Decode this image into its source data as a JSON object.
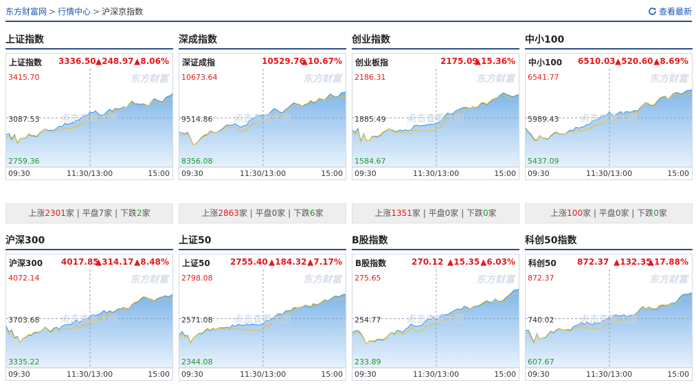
{
  "breadcrumb": {
    "home": "东方财富网",
    "section": "行情中心",
    "current": "沪深京指数",
    "separator": ">"
  },
  "refresh_label": "查看最新",
  "watermark": "点击查看大图",
  "logo_text": "东方财富",
  "x_ticks": [
    "09:30",
    "11:30/13:00",
    "15:00"
  ],
  "stats_labels": {
    "up": "上涨",
    "flat": "平盘",
    "down": "下跌",
    "unit": "家",
    "sep": "|"
  },
  "colors": {
    "up": "#e4191c",
    "down": "#179a26",
    "area_top": "#7fb6ea",
    "area_bottom": "#e8f2fc",
    "line": "#3f8fe0",
    "avg_line": "#f0c020",
    "border": "#2b4a8b"
  },
  "indices": [
    {
      "title": "上证指数",
      "name": "上证指数",
      "price": "3336.50",
      "change": "▲248.97",
      "pct": "▲8.06%",
      "high": "3415.70",
      "mid": "3087.53",
      "low": "2759.36",
      "stats": {
        "up": "2301",
        "flat": "7",
        "down": "2"
      }
    },
    {
      "title": "深成指数",
      "name": "深证成指",
      "price": "10529.76",
      "change": "",
      "pct": "▲10.67%",
      "high": "10673.64",
      "mid": "9514.86",
      "low": "8356.08",
      "stats": {
        "up": "2863",
        "flat": "0",
        "down": "6"
      }
    },
    {
      "title": "创业指数",
      "name": "创业板指",
      "price": "2175.09",
      "change": "",
      "pct": "▲15.36%",
      "high": "2186.31",
      "mid": "1885.49",
      "low": "1584.67",
      "stats": {
        "up": "1351",
        "flat": "0",
        "down": "0"
      }
    },
    {
      "title": "中小100",
      "name": "中小100",
      "price": "6510.03",
      "change": "▲520.60",
      "pct": "▲8.69%",
      "high": "6541.77",
      "mid": "5989.43",
      "low": "5437.09",
      "stats": {
        "up": "100",
        "flat": "0",
        "down": "0"
      }
    },
    {
      "title": "沪深300",
      "name": "沪深300",
      "price": "4017.85",
      "change": "▲314.17",
      "pct": "▲8.48%",
      "high": "4072.14",
      "mid": "3703.68",
      "low": "3335.22"
    },
    {
      "title": "上证50",
      "name": "上证50",
      "price": "2755.40",
      "change": "▲184.32",
      "pct": "▲7.17%",
      "high": "2798.08",
      "mid": "2571.08",
      "low": "2344.08"
    },
    {
      "title": "B股指数",
      "name": "B股指数",
      "price": "270.12",
      "change": "▲15.35",
      "pct": "▲6.03%",
      "high": "275.65",
      "mid": "254.77",
      "low": "233.89"
    },
    {
      "title": "科创50指数",
      "name": "科创50",
      "price": "872.37",
      "change": "▲132.35",
      "pct": "▲17.88%",
      "high": "872.37",
      "mid": "740.02",
      "low": "607.67"
    }
  ]
}
